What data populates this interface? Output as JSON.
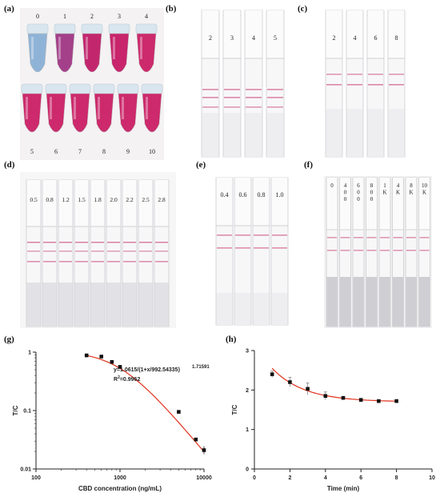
{
  "panels": {
    "a": {
      "label": "(a)",
      "tube_labels_top": [
        "0",
        "1",
        "2",
        "3",
        "4"
      ],
      "tube_labels_bottom": [
        "5",
        "6",
        "7",
        "8",
        "9",
        "10"
      ]
    },
    "b": {
      "label": "(b)",
      "strip_labels": [
        "2",
        "3",
        "4",
        "5"
      ]
    },
    "c": {
      "label": "(c)",
      "strip_labels": [
        "2",
        "4",
        "6",
        "8"
      ]
    },
    "d": {
      "label": "(d)",
      "strip_labels": [
        "0.5",
        "0.8",
        "1.2",
        "1.5",
        "1.8",
        "2.0",
        "2.2",
        "2.5",
        "2.8"
      ]
    },
    "e": {
      "label": "(e)",
      "strip_labels": [
        "0.4",
        "0.6",
        "0.8",
        "1.0"
      ]
    },
    "f": {
      "label": "(f)",
      "strip_labels": [
        "0",
        "4\n0\n0",
        "6\n0\n0",
        "8\n0\n0",
        "1\nK",
        "4\nK",
        "8\nK",
        "10\nK"
      ]
    },
    "g": {
      "label": "(g)"
    },
    "h": {
      "label": "(h)"
    }
  },
  "chart_data": [
    {
      "panel": "g",
      "type": "scatter",
      "xlabel": "CBD concentration (ng/mL)",
      "ylabel": "T/C",
      "x_scale": "log",
      "y_scale": "log",
      "xlim": [
        100,
        10000
      ],
      "ylim": [
        0.01,
        1
      ],
      "x_ticks": [
        "100",
        "1000",
        "10000"
      ],
      "y_ticks": [
        "0.01",
        "0.1",
        "1"
      ],
      "equation": "y=1.0615/(1+x/992.54335)",
      "equation_exponent": "1.71591",
      "r2_prefix": "R",
      "r2_sup": "2",
      "r2_value": "=0.9962",
      "x": [
        400,
        600,
        800,
        1000,
        5000,
        8000,
        10000
      ],
      "y": [
        0.88,
        0.84,
        0.68,
        0.56,
        0.095,
        0.032,
        0.021
      ],
      "fit_curve": {
        "a": 1.0615,
        "c": 992.54335,
        "n": 1.71591
      }
    },
    {
      "panel": "h",
      "type": "line",
      "xlabel": "Time (min)",
      "ylabel": "T/C",
      "xlim": [
        0,
        10
      ],
      "ylim": [
        0,
        3
      ],
      "x_ticks": [
        "0",
        "2",
        "4",
        "6",
        "8",
        "10"
      ],
      "y_ticks": [
        "0",
        "1",
        "2",
        "3"
      ],
      "x": [
        1,
        2,
        3,
        4,
        5,
        6,
        7,
        8
      ],
      "y": [
        2.4,
        2.2,
        2.03,
        1.85,
        1.8,
        1.75,
        1.72,
        1.72
      ],
      "errors": [
        0.08,
        0.12,
        0.15,
        0.1,
        0.04,
        0.03,
        0.03,
        0.04
      ]
    }
  ]
}
